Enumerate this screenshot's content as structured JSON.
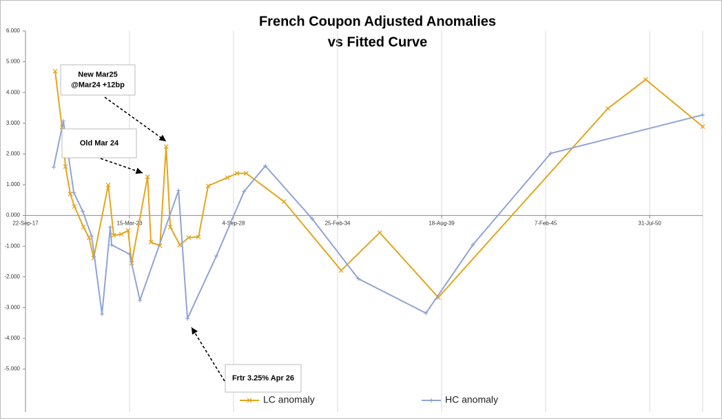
{
  "chart_data": {
    "type": "line",
    "title": [
      "French Coupon Adjusted Anomalies",
      "vs Fitted Curve"
    ],
    "xlim": [
      "2017-09-22",
      "2053-05-15"
    ],
    "xticks": [
      {
        "value": "2017-09-22",
        "label": "22-Sep-17"
      },
      {
        "value": "2023-03-15",
        "label": "15-Mar-23"
      },
      {
        "value": "2028-09-04",
        "label": "4-Sep-28"
      },
      {
        "value": "2034-02-25",
        "label": "25-Feb-34"
      },
      {
        "value": "2039-08-18",
        "label": "18-Aug-39"
      },
      {
        "value": "2045-02-07",
        "label": "7-Feb-45"
      },
      {
        "value": "2050-07-31",
        "label": "31-Jul-50"
      }
    ],
    "ylim": [
      -6.4,
      6
    ],
    "yticks": [
      {
        "value": 6,
        "label": "6.000"
      },
      {
        "value": 5,
        "label": "5.000"
      },
      {
        "value": 4,
        "label": "4.000"
      },
      {
        "value": 3,
        "label": "3.000"
      },
      {
        "value": 2,
        "label": "2.000"
      },
      {
        "value": 1,
        "label": "1.000"
      },
      {
        "value": 0,
        "label": "0.000"
      },
      {
        "value": -1,
        "label": "-1.000"
      },
      {
        "value": -2,
        "label": "-2.000"
      },
      {
        "value": -3,
        "label": "-3.000"
      },
      {
        "value": -4,
        "label": "-4.000"
      },
      {
        "value": -5,
        "label": "-5.000"
      }
    ],
    "grid": "x",
    "legend": "bottom",
    "series": [
      {
        "name": "LC anomaly",
        "color": "#e3a51c",
        "marker": "x",
        "x": [
          "2019-04-15",
          "2019-08-25",
          "2019-10-30",
          "2020-02-01",
          "2020-04-20",
          "2020-10-12",
          "2021-01-25",
          "2021-04-25",
          "2022-01-30",
          "2022-05-15",
          "2022-10-08",
          "2023-02-15",
          "2023-04-25",
          "2024-02-25",
          "2024-04-30",
          "2024-10-20",
          "2025-02-15",
          "2025-05-07",
          "2025-11-06",
          "2026-04-25",
          "2026-10-30",
          "2027-05-05",
          "2028-05-08",
          "2028-11-10",
          "2029-05-05",
          "2031-05-01",
          "2034-05-05",
          "2036-05-15",
          "2039-06-15",
          "2048-05-18",
          "2050-05-15",
          "2053-05-15"
        ],
        "values": [
          4.69,
          2.87,
          1.59,
          0.7,
          0.29,
          -0.38,
          -0.72,
          -1.39,
          0.99,
          -0.65,
          -0.61,
          -0.49,
          -1.55,
          1.26,
          -0.87,
          -0.99,
          2.24,
          -0.38,
          -0.96,
          -0.72,
          -0.7,
          0.96,
          1.23,
          1.37,
          1.37,
          0.45,
          -1.79,
          -0.56,
          -2.67,
          3.48,
          4.42,
          2.89
        ]
      },
      {
        "name": "HC anomaly",
        "color": "#8fa3d4",
        "marker": "+",
        "x": [
          "2019-03-18",
          "2019-09-20",
          "2020-04-08",
          "2020-09-27",
          "2021-03-17",
          "2021-10-02",
          "2022-03-10",
          "2022-04-05",
          "2023-03-15",
          "2023-10-01",
          "2025-10-12",
          "2026-04-01",
          "2027-10-10",
          "2029-03-25",
          "2030-05-08",
          "2032-10-25",
          "2035-03-30",
          "2038-10-20",
          "2041-04-08",
          "2045-05-15",
          "2053-05-15"
        ],
        "values": [
          1.57,
          3.07,
          0.74,
          0.13,
          -0.67,
          -3.21,
          -0.38,
          -0.96,
          -1.26,
          -2.76,
          0.81,
          -3.36,
          -1.32,
          0.78,
          1.61,
          -0.11,
          -2.06,
          -3.18,
          -0.96,
          2.02,
          3.27
        ]
      }
    ],
    "annotations": [
      {
        "lines": [
          "New Mar25",
          "@Mar24 +12bp"
        ]
      },
      {
        "lines": [
          "Old Mar 24"
        ]
      },
      {
        "lines": [
          "Frtr 3.25% Apr 26"
        ]
      }
    ]
  }
}
